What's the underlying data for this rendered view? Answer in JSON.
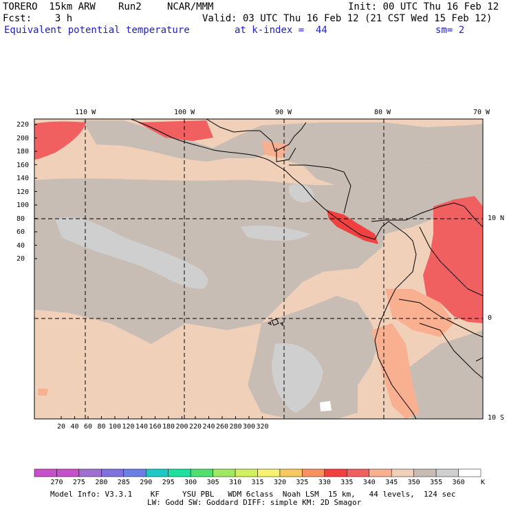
{
  "header": {
    "model": "TORERO  15km ARW",
    "run": "Run2",
    "center": "NCAR/MMM",
    "init": "Init: 00 UTC Thu 16 Feb 12",
    "fcst": "Fcst:    3 h",
    "valid": "Valid: 03 UTC Thu 16 Feb 12 (21 CST Wed 15 Feb 12)",
    "field": "Equivalent potential temperature",
    "level": "at k-index =  44",
    "smooth": "sm= 2"
  },
  "map": {
    "lon_labels": [
      "110 W",
      "100 W",
      "90 W",
      "80 W",
      "70 W"
    ],
    "lat_labels": [
      "10 N",
      "0",
      "10 S"
    ],
    "y_ticks": [
      "220",
      "200",
      "180",
      "160",
      "140",
      "120",
      "100",
      "80",
      "60",
      "40",
      "20"
    ],
    "x_ticks": [
      "20",
      "40",
      "60",
      "80",
      "100",
      "120",
      "140",
      "160",
      "180",
      "200",
      "220",
      "240",
      "260",
      "280",
      "300",
      "320"
    ]
  },
  "colorbar": {
    "labels": [
      "270",
      "275",
      "280",
      "285",
      "290",
      "295",
      "300",
      "305",
      "310",
      "315",
      "320",
      "325",
      "330",
      "335",
      "340",
      "345",
      "350",
      "355",
      "360"
    ],
    "unit": "K",
    "colors": [
      "#c850c8",
      "#a070d0",
      "#8070e0",
      "#6a80e8",
      "#20c8c8",
      "#20e0a0",
      "#50e070",
      "#a0e860",
      "#d0f060",
      "#f8f070",
      "#f8c860",
      "#f89060",
      "#f04040",
      "#f06060",
      "#f8b090",
      "#f0d0b8",
      "#c8bdb5",
      "#cfcfcf",
      "#ffffff"
    ]
  },
  "footer": {
    "line1": "Model Info: V3.3.1    KF     YSU PBL   WDM 6class  Noah LSM  15 km,   44 levels,  124 sec",
    "line2": "LW: Godd SW: Goddard DIFF: simple KM: 2D Smagor"
  }
}
